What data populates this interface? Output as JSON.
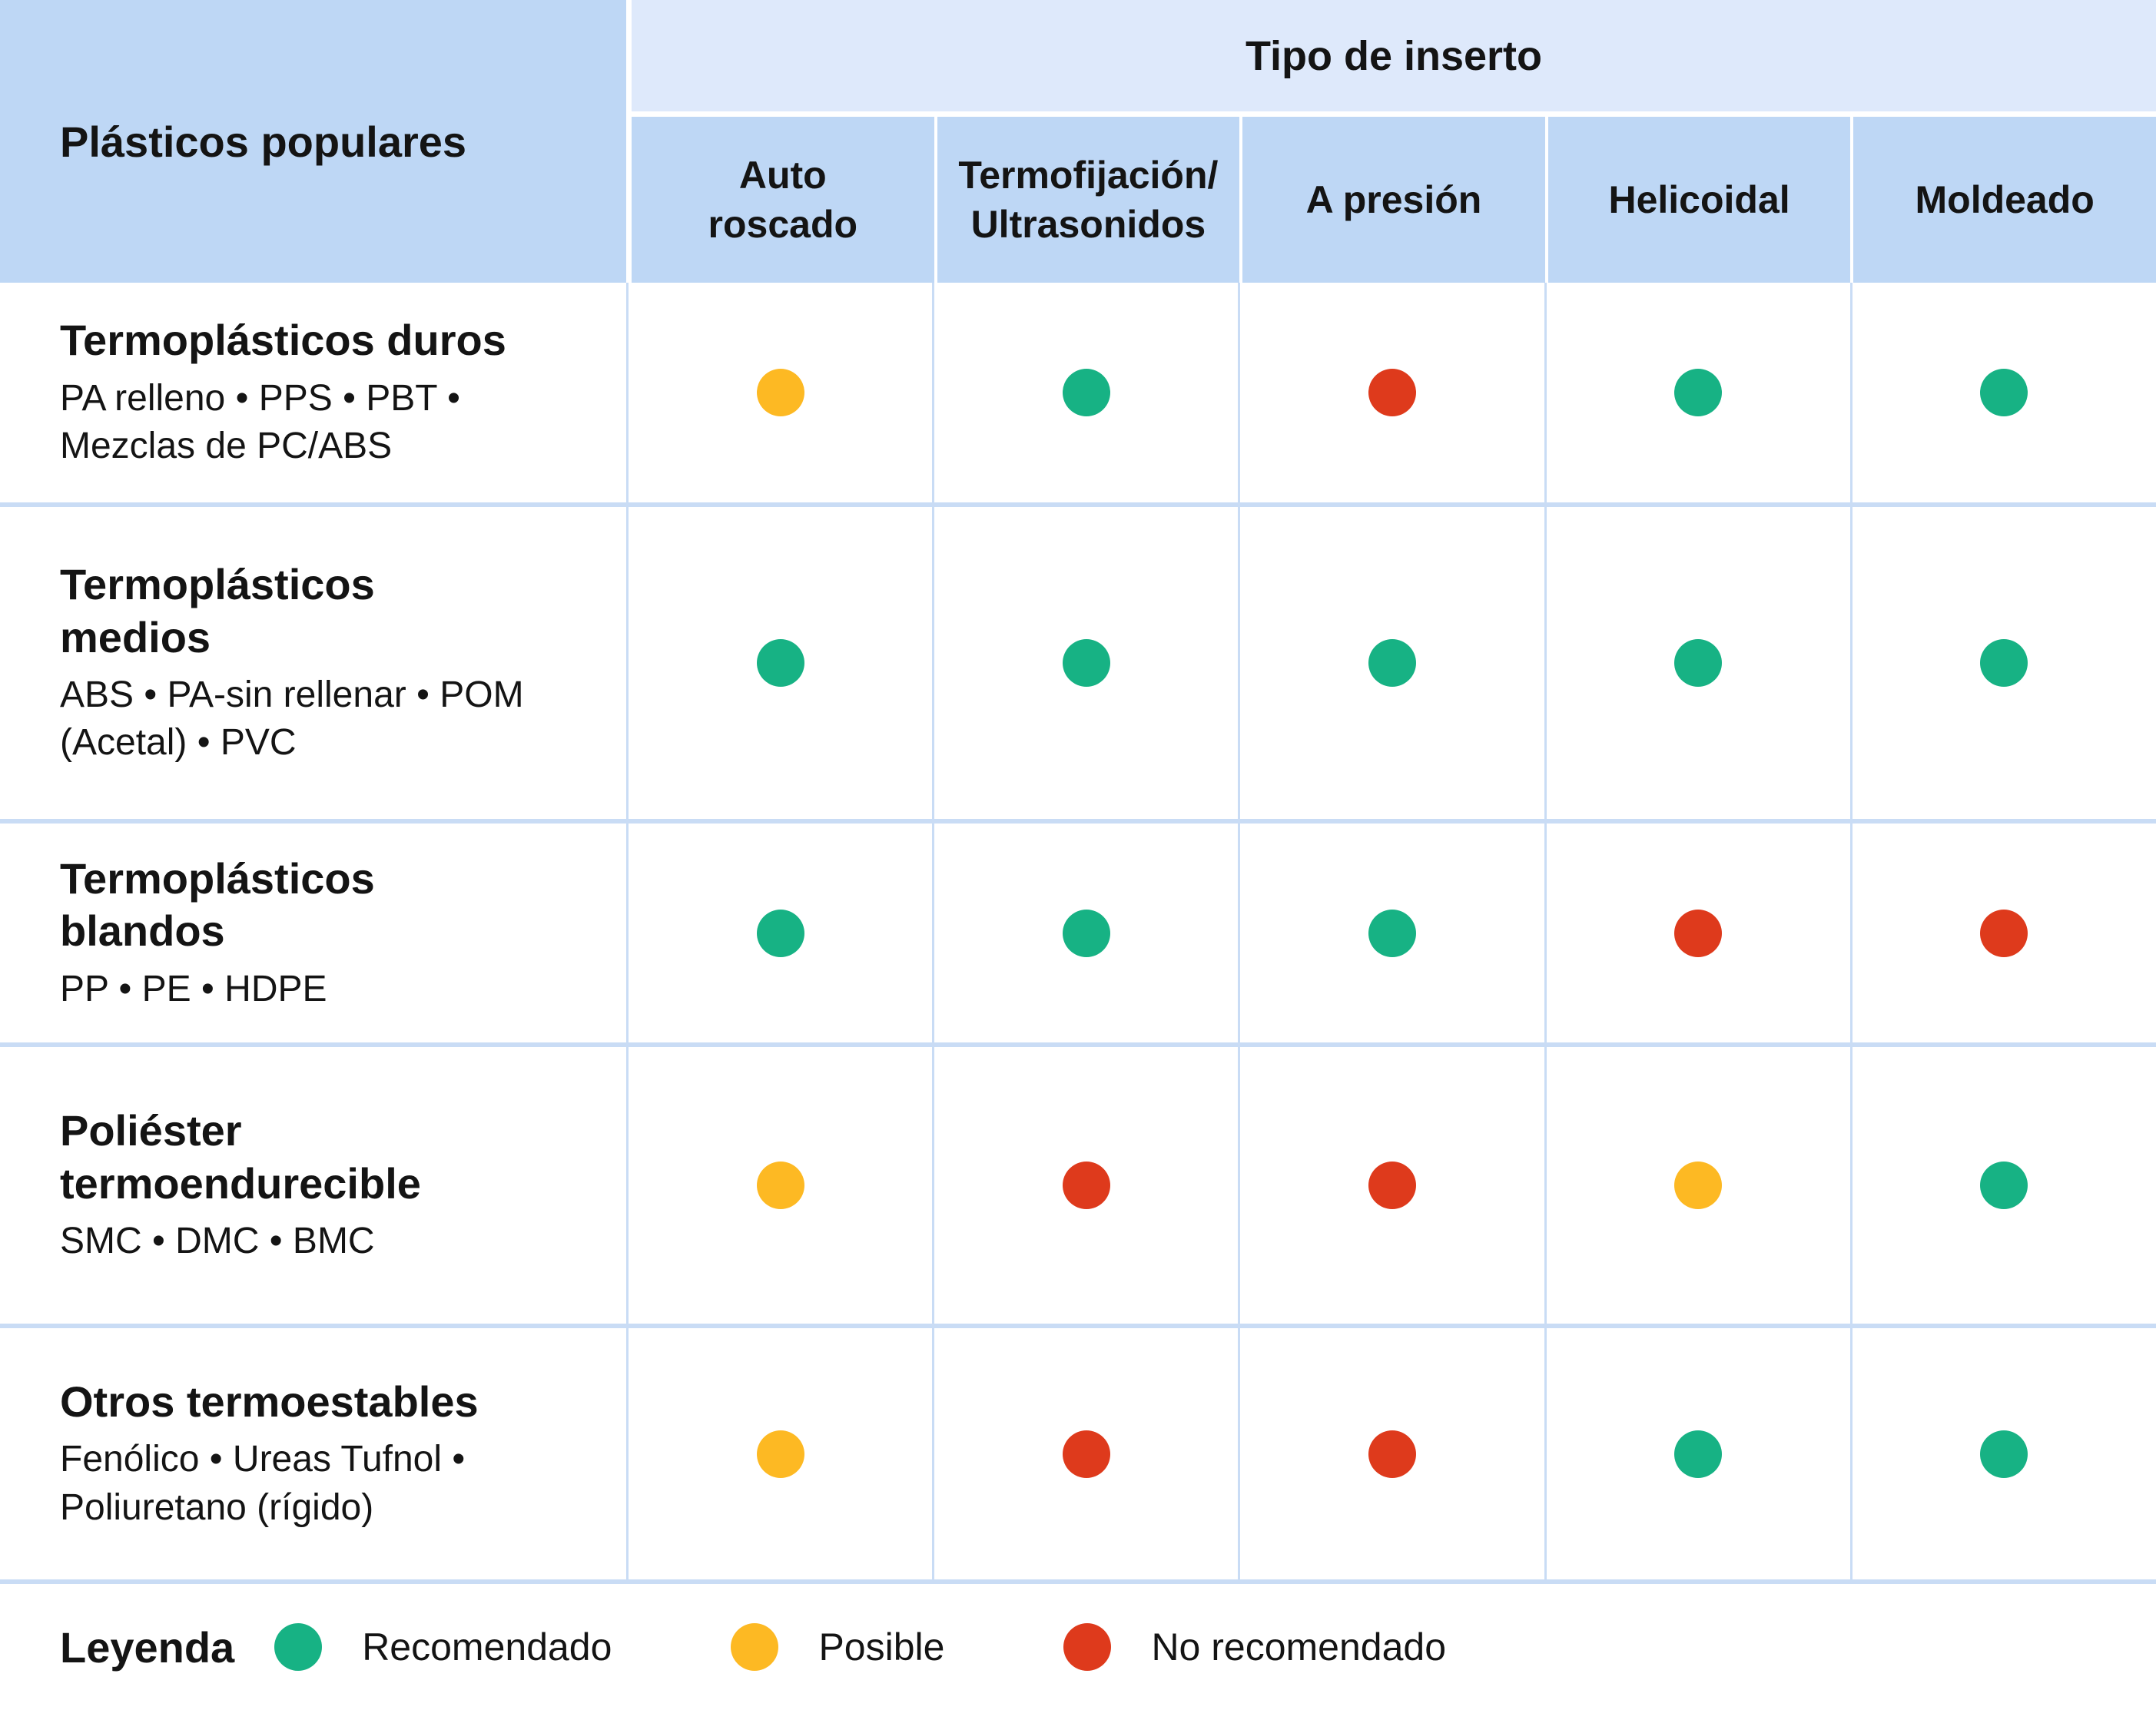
{
  "chart_data": {
    "type": "table",
    "corner_header": "Plásticos populares",
    "group_header": "Tipo de inserto",
    "columns": [
      "Auto\nroscado",
      "Termofijación/\nUltrasonidos",
      "A presión",
      "Helicoidal",
      "Moldeado"
    ],
    "rows": [
      {
        "title": "Termoplásticos duros",
        "subtitle": "PA relleno • PPS • PBT •\nMezclas de PC/ABS",
        "dots": [
          "possible",
          "recommended",
          "not_recommended",
          "recommended",
          "recommended"
        ]
      },
      {
        "title": "Termoplásticos\nmedios",
        "subtitle": "ABS • PA-sin rellenar • POM\n(Acetal) • PVC",
        "dots": [
          "recommended",
          "recommended",
          "recommended",
          "recommended",
          "recommended"
        ]
      },
      {
        "title": "Termoplásticos\nblandos",
        "subtitle": "PP • PE • HDPE",
        "dots": [
          "recommended",
          "recommended",
          "recommended",
          "not_recommended",
          "not_recommended"
        ]
      },
      {
        "title": "Poliéster\ntermoendurecible",
        "subtitle": "SMC • DMC • BMC",
        "dots": [
          "possible",
          "not_recommended",
          "not_recommended",
          "possible",
          "recommended"
        ]
      },
      {
        "title": "Otros termoestables",
        "subtitle": "Fenólico • Ureas Tufnol •\nPoliuretano (rígido)",
        "dots": [
          "possible",
          "not_recommended",
          "not_recommended",
          "recommended",
          "recommended"
        ]
      }
    ],
    "legend": {
      "title": "Leyenda",
      "items": [
        {
          "status": "recommended",
          "label": "Recomendado"
        },
        {
          "status": "possible",
          "label": "Posible"
        },
        {
          "status": "not_recommended",
          "label": "No recomendado"
        }
      ]
    },
    "status_colors": {
      "recommended": "#17B284",
      "possible": "#FDB923",
      "not_recommended": "#DE3A1C"
    }
  },
  "theme": {
    "header_cell_blue": "#BED7F5",
    "band_blue": "#DEE9FB",
    "grid_line_blue": "#C9DCF5",
    "text_color": "#141414",
    "background": "#FFFFFF"
  }
}
